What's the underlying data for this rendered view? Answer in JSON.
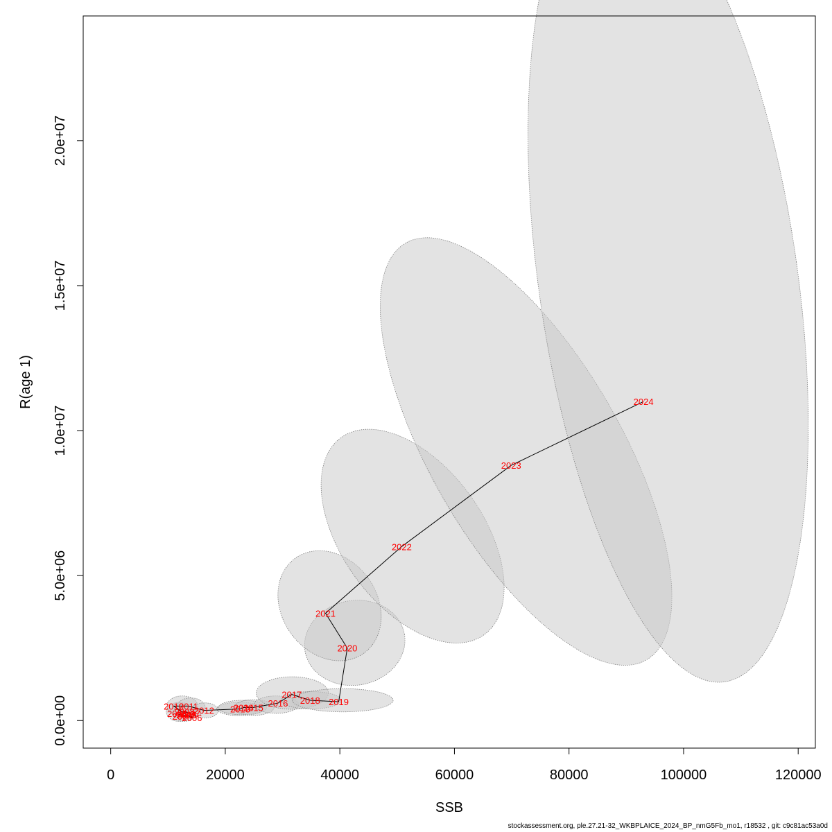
{
  "chart_data": {
    "type": "scatter",
    "title": "",
    "xlabel": "SSB",
    "ylabel": "R(age 1)",
    "xlim": [
      -4800,
      123000
    ],
    "ylim": [
      -950000,
      24300000
    ],
    "x_ticks": [
      0,
      20000,
      40000,
      60000,
      80000,
      100000,
      120000
    ],
    "x_tick_labels": [
      "0",
      "20000",
      "40000",
      "60000",
      "80000",
      "100000",
      "120000"
    ],
    "y_ticks": [
      0,
      5000000,
      10000000,
      15000000,
      20000000
    ],
    "y_tick_labels": [
      "0.0e+00",
      "5.0e+06",
      "1.0e+07",
      "1.5e+07",
      "2.0e+07"
    ],
    "grid": false,
    "legend": "none",
    "colors": {
      "label": "#ff0000",
      "line": "#000000",
      "ellipse_fill": "#c8c8c8",
      "ellipse_stroke": "#808080"
    },
    "points": [
      {
        "year": "2003",
        "ssb": 11600,
        "rec": 250000
      },
      {
        "year": "2004",
        "ssb": 12500,
        "rec": 150000
      },
      {
        "year": "2005",
        "ssb": 13300,
        "rec": 200000
      },
      {
        "year": "2006",
        "ssb": 14200,
        "rec": 100000
      },
      {
        "year": "2007",
        "ssb": 13900,
        "rec": 250000
      },
      {
        "year": "2008",
        "ssb": 12900,
        "rec": 300000
      },
      {
        "year": "2009",
        "ssb": 13200,
        "rec": 200000
      },
      {
        "year": "2010",
        "ssb": 11000,
        "rec": 500000
      },
      {
        "year": "2011",
        "ssb": 13600,
        "rec": 500000
      },
      {
        "year": "2012",
        "ssb": 16300,
        "rec": 350000
      },
      {
        "year": "2013",
        "ssb": 22600,
        "rec": 400000
      },
      {
        "year": "2014",
        "ssb": 23200,
        "rec": 450000
      },
      {
        "year": "2015",
        "ssb": 24900,
        "rec": 450000
      },
      {
        "year": "2016",
        "ssb": 29200,
        "rec": 600000
      },
      {
        "year": "2017",
        "ssb": 31600,
        "rec": 900000
      },
      {
        "year": "2018",
        "ssb": 34800,
        "rec": 700000
      },
      {
        "year": "2019",
        "ssb": 39800,
        "rec": 650000
      },
      {
        "year": "2020",
        "ssb": 41300,
        "rec": 2500000
      },
      {
        "year": "2021",
        "ssb": 37500,
        "rec": 3700000
      },
      {
        "year": "2022",
        "ssb": 50800,
        "rec": 6000000
      },
      {
        "year": "2023",
        "ssb": 69900,
        "rec": 8800000
      },
      {
        "year": "2024",
        "ssb": 93000,
        "rec": 11000000
      }
    ],
    "confidence_ellipses": [
      {
        "year": "2003",
        "cx": 12000,
        "cy": 300000,
        "rx": 2300,
        "ry": 330000,
        "angle": 0
      },
      {
        "year": "2004",
        "cx": 12800,
        "cy": 250000,
        "rx": 2000,
        "ry": 280000,
        "angle": 0
      },
      {
        "year": "2010",
        "cx": 12500,
        "cy": 500000,
        "rx": 2700,
        "ry": 350000,
        "angle": 0
      },
      {
        "year": "2011",
        "cx": 14000,
        "cy": 450000,
        "rx": 2500,
        "ry": 330000,
        "angle": 0
      },
      {
        "year": "2012",
        "cx": 16400,
        "cy": 350000,
        "rx": 2400,
        "ry": 260000,
        "angle": 0
      },
      {
        "year": "2013",
        "cx": 22500,
        "cy": 400000,
        "rx": 4000,
        "ry": 230000,
        "angle": 0
      },
      {
        "year": "2014",
        "cx": 23000,
        "cy": 450000,
        "rx": 4200,
        "ry": 250000,
        "angle": 0
      },
      {
        "year": "2015",
        "cx": 25000,
        "cy": 450000,
        "rx": 3500,
        "ry": 270000,
        "angle": 0
      },
      {
        "year": "2016",
        "cx": 28900,
        "cy": 550000,
        "rx": 3900,
        "ry": 300000,
        "angle": 0
      },
      {
        "year": "2017",
        "cx": 31700,
        "cy": 950000,
        "rx": 6300,
        "ry": 560000,
        "angle": 0
      },
      {
        "year": "2018",
        "cx": 35000,
        "cy": 700000,
        "rx": 5200,
        "ry": 300000,
        "angle": 0
      },
      {
        "year": "2019",
        "cx": 40500,
        "cy": 700000,
        "rx": 8800,
        "ry": 400000,
        "angle": 0
      },
      {
        "year": "2020",
        "cx": 42600,
        "cy": 2680000,
        "rx": 8800,
        "ry": 1460000,
        "angle": -10
      },
      {
        "year": "2021",
        "cx": 38200,
        "cy": 3960000,
        "rx": 8300,
        "ry": 2020000,
        "angle": -36
      },
      {
        "year": "2022",
        "cx": 52700,
        "cy": 6360000,
        "rx": 12300,
        "ry": 4200000,
        "angle": -36
      },
      {
        "year": "2023",
        "cx": 72500,
        "cy": 9280000,
        "rx": 16600,
        "ry": 8300000,
        "angle": -30
      },
      {
        "year": "2024",
        "cx": 97300,
        "cy": 15200000,
        "rx": 22600,
        "ry": 14000000,
        "angle": -8
      }
    ]
  },
  "footer": "stockassessment.org, ple.27.21-32_WKBPLAICE_2024_BP_nmG5Fb_mo1, r18532 , git: c9c81ac53a0d"
}
